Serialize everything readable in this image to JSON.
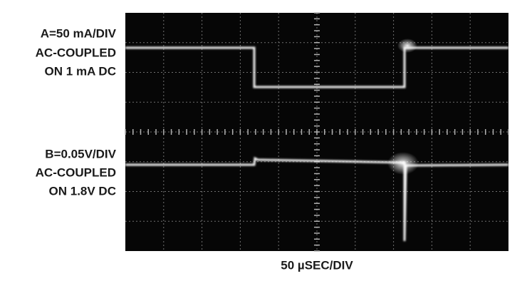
{
  "channel_a": {
    "lines": [
      "A=50 mA/DIV",
      "AC-COUPLED",
      "ON 1 mA DC"
    ]
  },
  "channel_b": {
    "lines": [
      "B=0.05V/DIV",
      "AC-COUPLED",
      "ON 1.8V DC"
    ]
  },
  "time_scale": "50 µSEC/DIV"
}
